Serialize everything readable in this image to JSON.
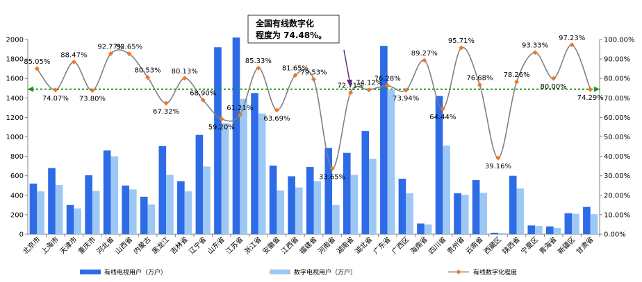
{
  "chart_data": {
    "type": "bar",
    "categories": [
      "北京市",
      "上海市",
      "天津市",
      "重庆市",
      "河北省",
      "山西省",
      "内蒙古",
      "黑龙江",
      "吉林省",
      "辽宁省",
      "山东省",
      "江苏省",
      "浙江省",
      "安徽省",
      "江西省",
      "福建省",
      "河南省",
      "湖南省",
      "湖北省",
      "广东省",
      "广西区",
      "海南省",
      "四川省",
      "贵州省",
      "云南省",
      "西藏区",
      "陕西省",
      "宁夏区",
      "青海省",
      "新疆区",
      "甘肃省"
    ],
    "series": [
      {
        "name": "有线电视用户（万户）",
        "type": "bar",
        "axis": "left",
        "color": "#2E6BE6",
        "values": [
          520,
          680,
          300,
          605,
          860,
          500,
          385,
          905,
          545,
          1020,
          1920,
          2020,
          1450,
          705,
          595,
          690,
          885,
          835,
          1060,
          1935,
          570,
          110,
          1420,
          420,
          555,
          15,
          600,
          90,
          80,
          215,
          280
        ]
      },
      {
        "name": "数字电视用户（万户）",
        "type": "bar",
        "axis": "left",
        "color": "#9DC8F5",
        "values": [
          440,
          505,
          265,
          445,
          800,
          460,
          305,
          610,
          440,
          695,
          1140,
          1390,
          1240,
          450,
          480,
          545,
          300,
          610,
          775,
          1480,
          420,
          100,
          910,
          405,
          425,
          12,
          470,
          85,
          65,
          210,
          205
        ]
      },
      {
        "name": "有线数字化程度",
        "type": "line",
        "axis": "right",
        "color": "#808080",
        "marker_color": "#F07820",
        "values": [
          85.05,
          74.07,
          88.47,
          73.8,
          92.77,
          92.65,
          80.53,
          67.32,
          80.13,
          68.9,
          59.2,
          61.21,
          85.33,
          63.69,
          81.65,
          79.53,
          33.65,
          72.71,
          74.12,
          76.28,
          73.94,
          89.27,
          64.44,
          95.71,
          76.68,
          39.16,
          78.26,
          93.33,
          80.0,
          97.23,
          74.29
        ],
        "labels": [
          "85.05%",
          "74.07%",
          "88.47%",
          "73.80%",
          "92.77%",
          "92.65%",
          "80.53%",
          "67.32%",
          "80.13%",
          "68.90%",
          "59.20%",
          "61.21%",
          "85.33%",
          "63.69%",
          "81.65%",
          "79.53%",
          "33.65%",
          "72.71%",
          "74.12%",
          "76.28%",
          "73.94%",
          "89.27%",
          "64.44%",
          "95.71%",
          "76.68%",
          "39.16%",
          "78.26%",
          "93.33%",
          "80.00%",
          "97.23%",
          "74.29%"
        ]
      }
    ],
    "average_line": {
      "value": 74.48,
      "color": "#1A9A1A"
    },
    "y_left": {
      "ylim": [
        0,
        2000
      ],
      "ticks": [
        "0",
        "200",
        "400",
        "600",
        "800",
        "1000",
        "1200",
        "1400",
        "1600",
        "1800",
        "2000"
      ]
    },
    "y_right": {
      "ylim": [
        0,
        100
      ],
      "ticks": [
        "0.00%",
        "10.00%",
        "20.00%",
        "30.00%",
        "40.00%",
        "50.00%",
        "60.00%",
        "70.00%",
        "80.00%",
        "90.00%",
        "100.00%"
      ]
    },
    "callout": {
      "line1": "全国有线数字化",
      "line2": "程度为 74.48%。"
    },
    "legend_position": "bottom",
    "grid": false
  }
}
